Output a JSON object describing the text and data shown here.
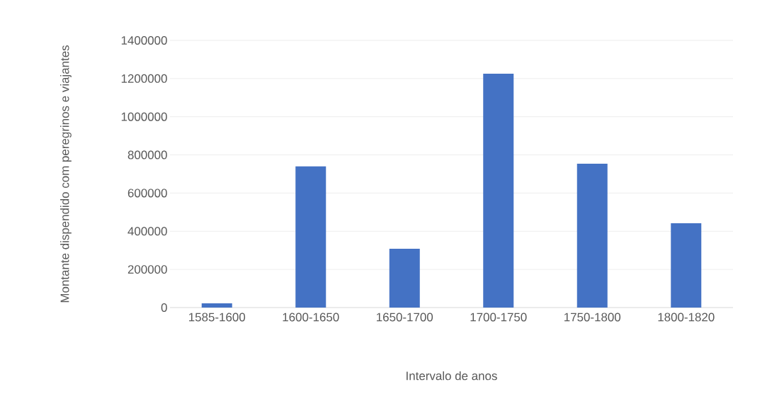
{
  "chart_data": {
    "type": "bar",
    "xlabel": "Intervalo de anos",
    "ylabel": "Montante dispendido com peregrinos e viajantes",
    "categories": [
      "1585-1600",
      "1600-1650",
      "1650-1700",
      "1700-1750",
      "1750-1800",
      "1800-1820"
    ],
    "values": [
      22000,
      740000,
      308000,
      1225000,
      754000,
      442000
    ],
    "color": "#4472c4",
    "ylim": [
      0,
      1400000
    ],
    "yticks": [
      0,
      200000,
      400000,
      600000,
      800000,
      1000000,
      1200000,
      1400000
    ],
    "grid": "y"
  }
}
